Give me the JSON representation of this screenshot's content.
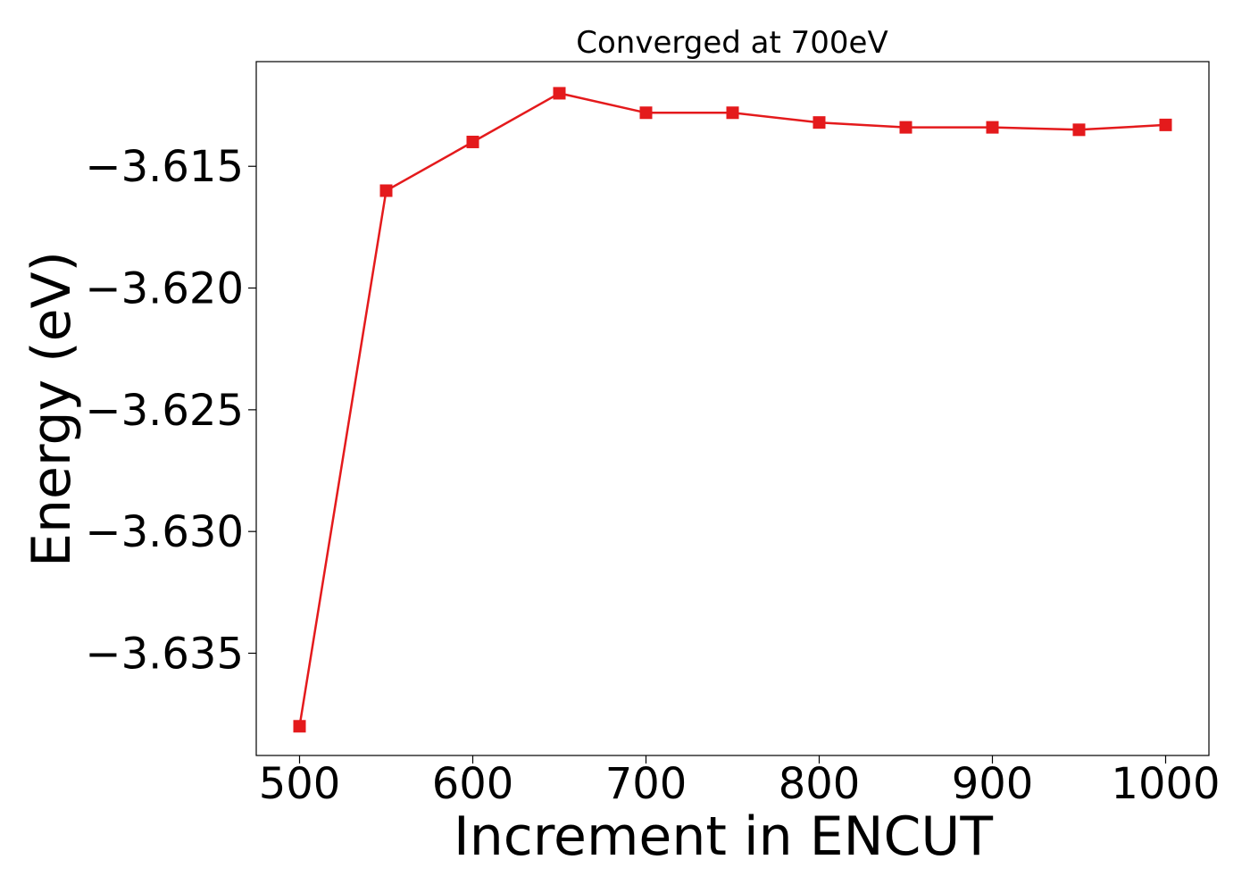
{
  "chart_data": {
    "type": "line",
    "title": "Converged at 700eV",
    "xlabel": "Increment in ENCUT",
    "ylabel": "Energy (eV)",
    "x": [
      500,
      550,
      600,
      650,
      700,
      750,
      800,
      850,
      900,
      950,
      1000
    ],
    "series": [
      {
        "values": [
          -3.638,
          -3.616,
          -3.614,
          -3.612,
          -3.6128,
          -3.6128,
          -3.6132,
          -3.6134,
          -3.6134,
          -3.6135,
          -3.6133
        ],
        "color": "#e41a1c",
        "marker": "square"
      }
    ],
    "xticks": [
      500,
      600,
      700,
      800,
      900,
      1000
    ],
    "xtick_labels": [
      "500",
      "600",
      "700",
      "800",
      "900",
      "1000"
    ],
    "yticks": [
      -3.635,
      -3.63,
      -3.625,
      -3.62,
      -3.615
    ],
    "ytick_labels": [
      "−3.635",
      "−3.630",
      "−3.625",
      "−3.620",
      "−3.615"
    ],
    "xlim": [
      475,
      1025
    ],
    "ylim": [
      -3.6392,
      -3.6107
    ],
    "grid": false,
    "legend": "none"
  }
}
